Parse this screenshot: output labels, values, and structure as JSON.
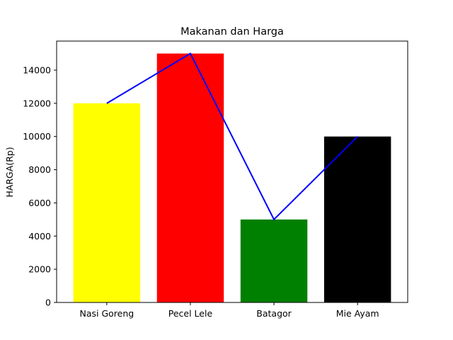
{
  "chart_data": {
    "type": "bar",
    "title": "Makanan dan Harga",
    "xlabel": "",
    "ylabel": "HARGA(Rp)",
    "categories": [
      "Nasi Goreng",
      "Pecel Lele",
      "Batagor",
      "Mie Ayam"
    ],
    "values": [
      12000,
      15000,
      5000,
      10000
    ],
    "bar_colors": [
      "#ffff00",
      "#ff0000",
      "#008000",
      "#000000"
    ],
    "line": {
      "values": [
        12000,
        15000,
        5000,
        10000
      ],
      "color": "#0000ff"
    },
    "ylim": [
      0,
      15750
    ],
    "yticks": [
      0,
      2000,
      4000,
      6000,
      8000,
      10000,
      12000,
      14000
    ],
    "grid": false
  }
}
